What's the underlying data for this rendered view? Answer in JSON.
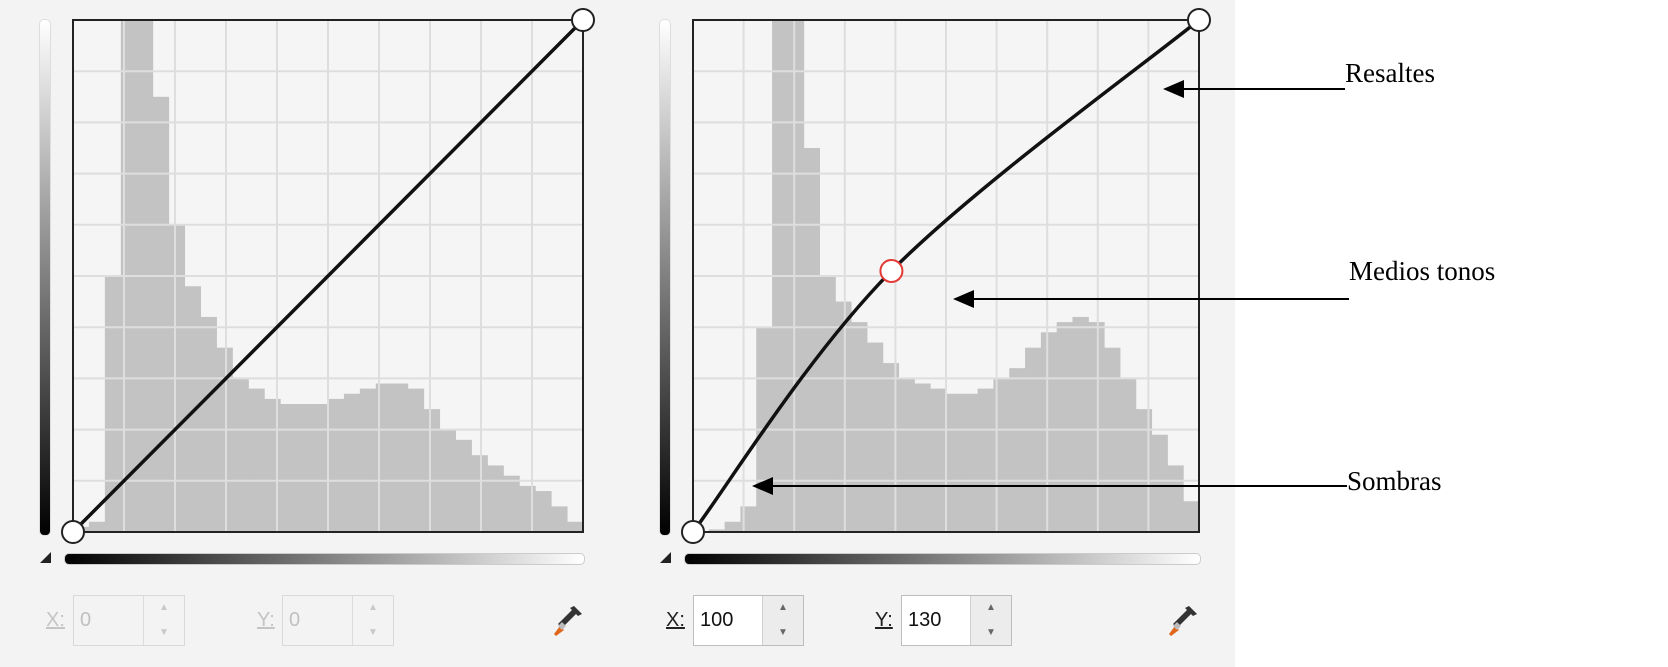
{
  "panels": [
    {
      "name": "original",
      "x_label": "X:",
      "y_label": "Y:",
      "x_value": "0",
      "y_value": "0",
      "disabled": true,
      "curve_points": [
        [
          0,
          0
        ],
        [
          255,
          255
        ]
      ],
      "selected_point": null,
      "histogram": [
        0.01,
        0.02,
        0.5,
        1,
        1,
        0.85,
        0.6,
        0.48,
        0.42,
        0.36,
        0.3,
        0.28,
        0.26,
        0.25,
        0.25,
        0.25,
        0.26,
        0.27,
        0.28,
        0.29,
        0.29,
        0.28,
        0.24,
        0.2,
        0.18,
        0.15,
        0.13,
        0.11,
        0.09,
        0.08,
        0.05,
        0.02
      ]
    },
    {
      "name": "adjusted",
      "x_label": "X:",
      "y_label": "Y:",
      "x_value": "100",
      "y_value": "130",
      "disabled": false,
      "curve_points": [
        [
          0,
          0
        ],
        [
          100,
          130
        ],
        [
          255,
          255
        ]
      ],
      "selected_point": [
        100,
        130
      ],
      "histogram": [
        0,
        0.005,
        0.02,
        0.05,
        0.4,
        1,
        1,
        0.75,
        0.5,
        0.45,
        0.41,
        0.37,
        0.33,
        0.3,
        0.29,
        0.28,
        0.27,
        0.27,
        0.28,
        0.3,
        0.32,
        0.36,
        0.39,
        0.41,
        0.42,
        0.41,
        0.36,
        0.3,
        0.24,
        0.19,
        0.13,
        0.06
      ]
    }
  ],
  "axis_range": [
    0,
    255
  ],
  "grid_divisions": 10,
  "annotations": {
    "highlights": "Resaltes",
    "midtones": "Medios tonos",
    "shadows": "Sombras"
  },
  "icons": {
    "eyedropper": "eyedropper-icon",
    "spin_up": "▲",
    "spin_down": "▼"
  },
  "colors": {
    "panel_bg": "#f3f3f3",
    "histogram": "#c3c3c3",
    "grid": "#dedede",
    "curve": "#111111",
    "selected_point": "#e53935",
    "eyedropper_tip": "#e0661b"
  }
}
